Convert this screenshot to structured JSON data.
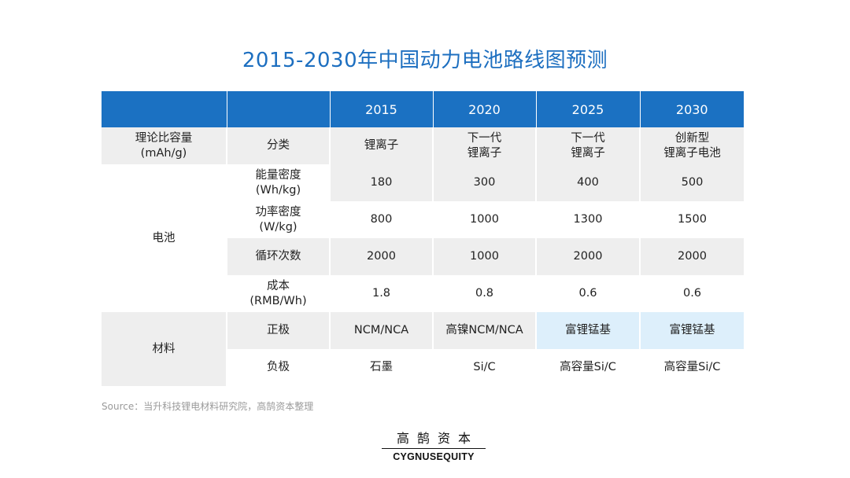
{
  "title": "2015-2030年中国动力电池路线图预测",
  "table": {
    "header": [
      "",
      "",
      "2015",
      "2020",
      "2025",
      "2030"
    ],
    "row_groups": {
      "first": "理论比容量\n(mAh/g)",
      "battery": "电池",
      "material": "材料"
    },
    "rows": [
      {
        "label": "分类",
        "cells": [
          "锂离子",
          "下一代\n锂离子",
          "下一代\n锂离子",
          "创新型\n锂离子电池"
        ]
      },
      {
        "label": "能量密度\n(Wh/kg)",
        "cells": [
          "180",
          "300",
          "400",
          "500"
        ]
      },
      {
        "label": "功率密度\n(W/kg)",
        "cells": [
          "800",
          "1000",
          "1300",
          "1500"
        ]
      },
      {
        "label": "循环次数",
        "cells": [
          "2000",
          "1000",
          "2000",
          "2000"
        ]
      },
      {
        "label": "成本\n(RMB/Wh)",
        "cells": [
          "1.8",
          "0.8",
          "0.6",
          "0.6"
        ]
      },
      {
        "label": "正极",
        "cells": [
          "NCM/NCA",
          "高镍NCM/NCA",
          "富锂锰基",
          "富锂锰基"
        ]
      },
      {
        "label": "负极",
        "cells": [
          "石墨",
          "Si/C",
          "高容量Si/C",
          "高容量Si/C"
        ]
      }
    ],
    "colors": {
      "header": "#1b71c2",
      "stripe": "#eeeeee",
      "highlight": "#ddeffb"
    }
  },
  "source": "Source：当升科技锂电材料研究院，高鹄资本整理",
  "logo": {
    "cn": "高鹄资本",
    "en": "CYGNUSEQUITY"
  }
}
